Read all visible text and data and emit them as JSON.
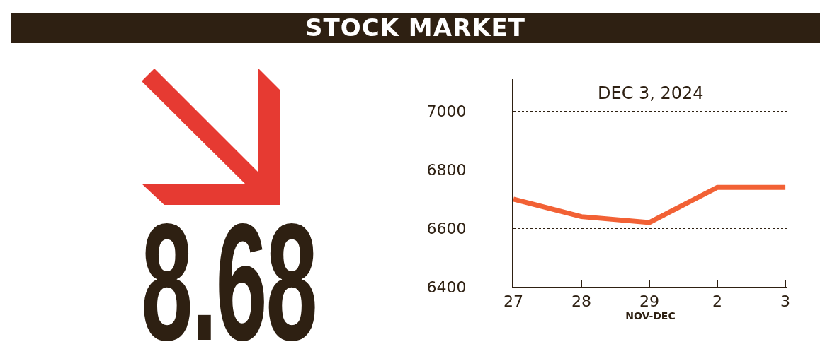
{
  "chart_data": {
    "type": "line",
    "title": "STOCK MARKET",
    "subtitle": "DEC 3, 2024",
    "xlabel": "NOV-DEC",
    "annotations": [
      "8.68"
    ],
    "categories": [
      "27",
      "28",
      "29",
      "2",
      "3"
    ],
    "series": [
      {
        "color": "#f26135",
        "values": [
          6700,
          6640,
          6620,
          6740,
          6740
        ]
      }
    ],
    "ylim": [
      6400,
      7110
    ],
    "yticks": [
      6400,
      6600,
      6800,
      7000
    ],
    "grid": "y",
    "marker": "none",
    "line_style": "solid"
  }
}
